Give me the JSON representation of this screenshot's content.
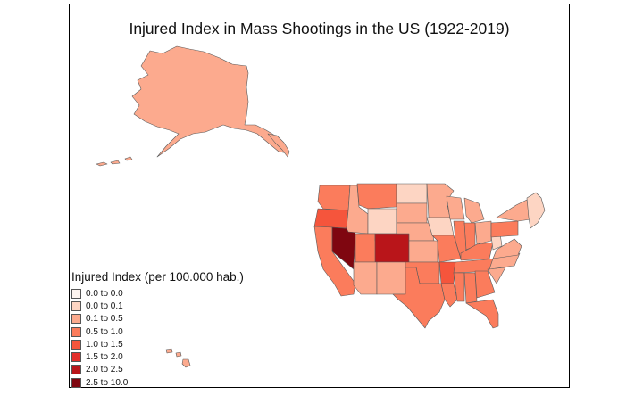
{
  "title": "Injured Index in Mass Shootings in the US (1922-2019)",
  "legend": {
    "title": "Injured Index (per 100.000 hab.)",
    "items": [
      {
        "label": "0.0 to 0.0",
        "color": "#fff5f0"
      },
      {
        "label": "0.0 to 0.1",
        "color": "#fdd5c3"
      },
      {
        "label": "0.1 to 0.5",
        "color": "#fcaa8e"
      },
      {
        "label": "0.5 to 1.0",
        "color": "#fb7c5c"
      },
      {
        "label": "1.0 to 1.5",
        "color": "#f5553c"
      },
      {
        "label": "1.5 to 2.0",
        "color": "#e3302b"
      },
      {
        "label": "2.0 to 2.5",
        "color": "#b9151a"
      },
      {
        "label": "2.5 to 10.0",
        "color": "#7f0610"
      }
    ]
  },
  "regions": [
    {
      "name": "AK",
      "class": 2
    },
    {
      "name": "HI",
      "class": 2
    },
    {
      "name": "WA",
      "class": 3
    },
    {
      "name": "OR",
      "class": 4
    },
    {
      "name": "CA",
      "class": 3
    },
    {
      "name": "NV",
      "class": 7
    },
    {
      "name": "ID",
      "class": 2
    },
    {
      "name": "MT",
      "class": 3
    },
    {
      "name": "WY",
      "class": 1
    },
    {
      "name": "UT",
      "class": 3
    },
    {
      "name": "CO",
      "class": 6
    },
    {
      "name": "AZ",
      "class": 2
    },
    {
      "name": "NM",
      "class": 2
    },
    {
      "name": "ND",
      "class": 1
    },
    {
      "name": "SD",
      "class": 2
    },
    {
      "name": "NE",
      "class": 2
    },
    {
      "name": "KS",
      "class": 2
    },
    {
      "name": "OK",
      "class": 3
    },
    {
      "name": "TX",
      "class": 3
    },
    {
      "name": "MN",
      "class": 2
    },
    {
      "name": "IA",
      "class": 1
    },
    {
      "name": "MO",
      "class": 3
    },
    {
      "name": "AR",
      "class": 4
    },
    {
      "name": "LA",
      "class": 3
    },
    {
      "name": "WI",
      "class": 2
    },
    {
      "name": "IL",
      "class": 3
    },
    {
      "name": "MI",
      "class": 2
    },
    {
      "name": "IN",
      "class": 3
    },
    {
      "name": "OH",
      "class": 2
    },
    {
      "name": "KY",
      "class": 3
    },
    {
      "name": "TN",
      "class": 3
    },
    {
      "name": "MS",
      "class": 3
    },
    {
      "name": "AL",
      "class": 3
    },
    {
      "name": "GA",
      "class": 3
    },
    {
      "name": "FL",
      "class": 3
    },
    {
      "name": "SC",
      "class": 2
    },
    {
      "name": "NC",
      "class": 2
    },
    {
      "name": "VA",
      "class": 2
    },
    {
      "name": "WV",
      "class": 1
    },
    {
      "name": "PA",
      "class": 3
    },
    {
      "name": "NY",
      "class": 2
    },
    {
      "name": "NE-states",
      "class": 1
    }
  ]
}
